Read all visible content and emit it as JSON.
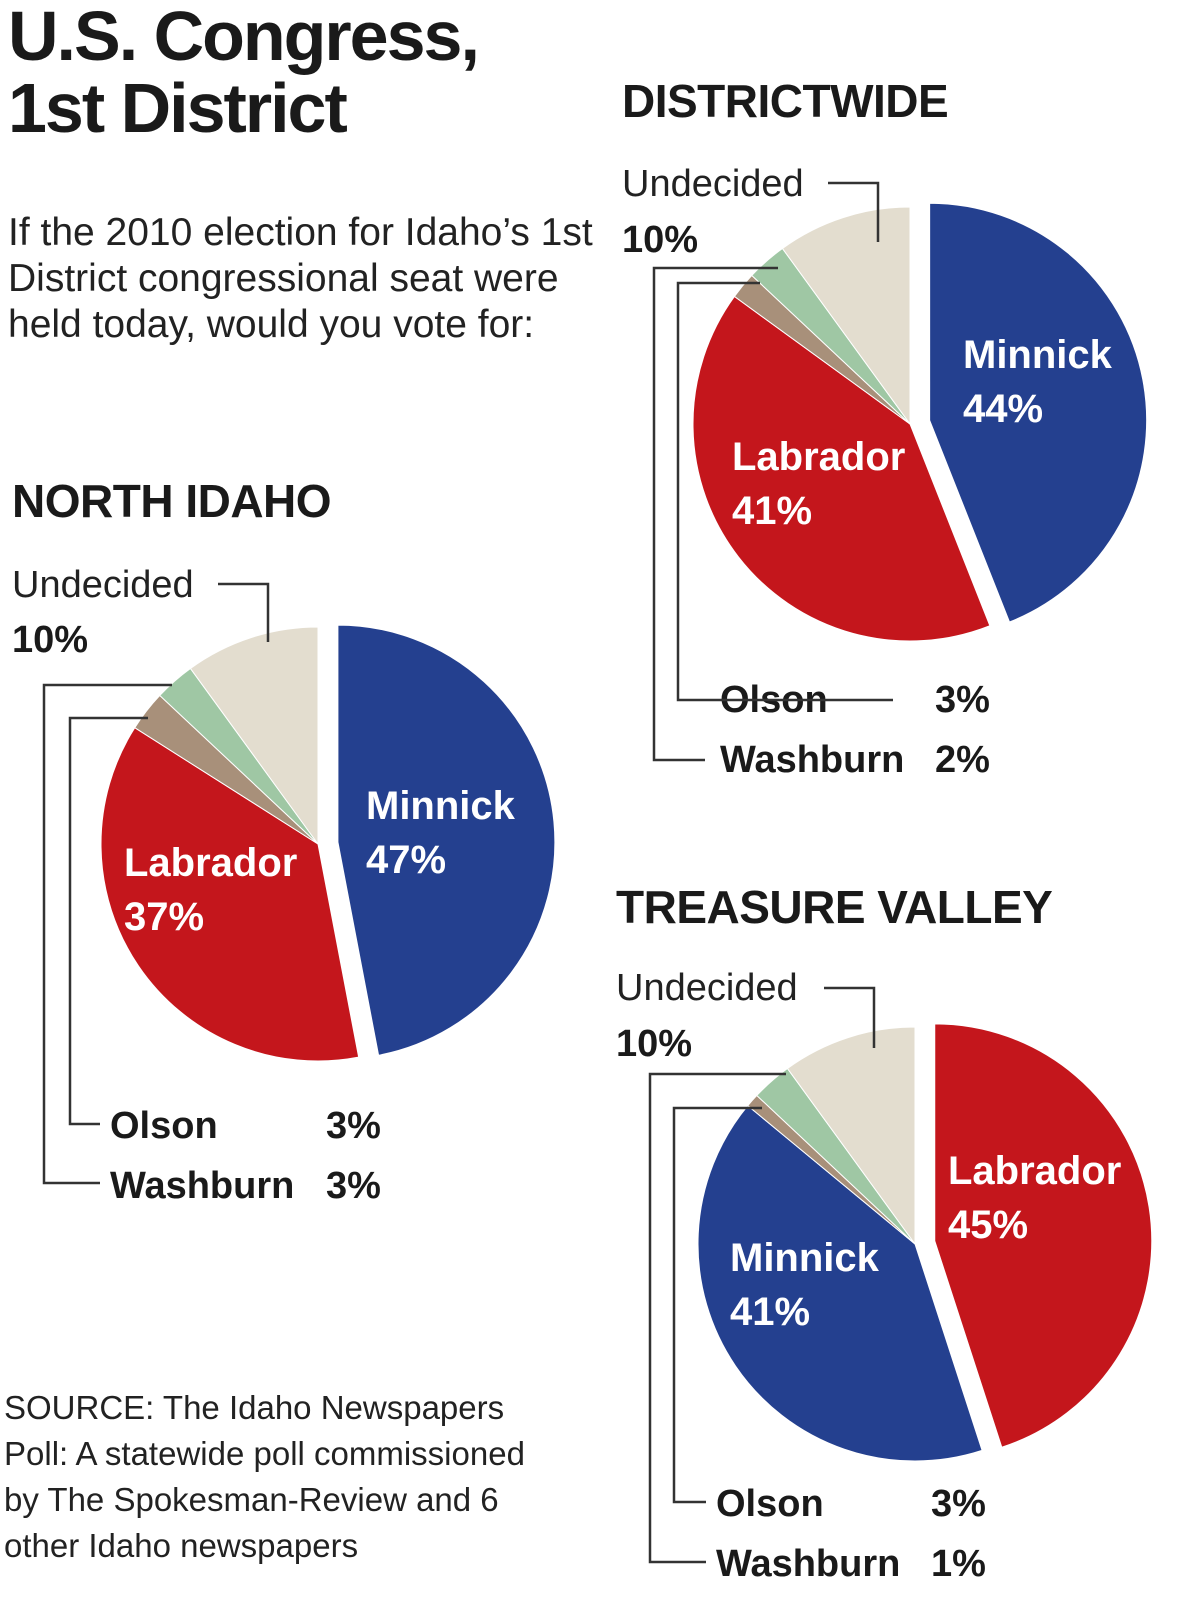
{
  "header": {
    "title_line1": "U.S. Congress,",
    "title_line2": "1st District",
    "question": "If the 2010 election for Idaho’s 1st District congressional seat were held today, would you vote for:",
    "source": "SOURCE: The Idaho Newspapers Poll: A statewide poll commissioned by The Spokesman-Review and 6 other Idaho newspapers"
  },
  "colors": {
    "Minnick": "#24408f",
    "Labrador": "#c4161c",
    "Washburn": "#a8907a",
    "Olson": "#9fc7a4",
    "Undecided": "#e3ddcf",
    "leader_line": "#333333"
  },
  "chart_data": [
    {
      "type": "pie",
      "title": "DISTRICTWIDE",
      "slices": [
        {
          "name": "Minnick",
          "value": 44
        },
        {
          "name": "Labrador",
          "value": 41
        },
        {
          "name": "Washburn",
          "value": 2
        },
        {
          "name": "Olson",
          "value": 3
        },
        {
          "name": "Undecided",
          "value": 10
        }
      ],
      "inside_labels": [
        {
          "name": "Minnick",
          "pct": "44%"
        },
        {
          "name": "Labrador",
          "pct": "41%"
        }
      ],
      "callout_undecided": {
        "name": "Undecided",
        "pct": "10%"
      },
      "callouts_bottom": [
        {
          "name": "Olson",
          "pct": "3%"
        },
        {
          "name": "Washburn",
          "pct": "2%"
        }
      ]
    },
    {
      "type": "pie",
      "title": "NORTH IDAHO",
      "slices": [
        {
          "name": "Minnick",
          "value": 47
        },
        {
          "name": "Labrador",
          "value": 37
        },
        {
          "name": "Washburn",
          "value": 3
        },
        {
          "name": "Olson",
          "value": 3
        },
        {
          "name": "Undecided",
          "value": 10
        }
      ],
      "inside_labels": [
        {
          "name": "Minnick",
          "pct": "47%"
        },
        {
          "name": "Labrador",
          "pct": "37%"
        }
      ],
      "callout_undecided": {
        "name": "Undecided",
        "pct": "10%"
      },
      "callouts_bottom": [
        {
          "name": "Olson",
          "pct": "3%"
        },
        {
          "name": "Washburn",
          "pct": "3%"
        }
      ]
    },
    {
      "type": "pie",
      "title": "TREASURE VALLEY",
      "slices": [
        {
          "name": "Labrador",
          "value": 45
        },
        {
          "name": "Minnick",
          "value": 41
        },
        {
          "name": "Washburn",
          "value": 1
        },
        {
          "name": "Olson",
          "value": 3
        },
        {
          "name": "Undecided",
          "value": 10
        }
      ],
      "inside_labels": [
        {
          "name": "Labrador",
          "pct": "45%"
        },
        {
          "name": "Minnick",
          "pct": "41%"
        }
      ],
      "callout_undecided": {
        "name": "Undecided",
        "pct": "10%"
      },
      "callouts_bottom": [
        {
          "name": "Olson",
          "pct": "3%"
        },
        {
          "name": "Washburn",
          "pct": "1%"
        }
      ]
    }
  ]
}
